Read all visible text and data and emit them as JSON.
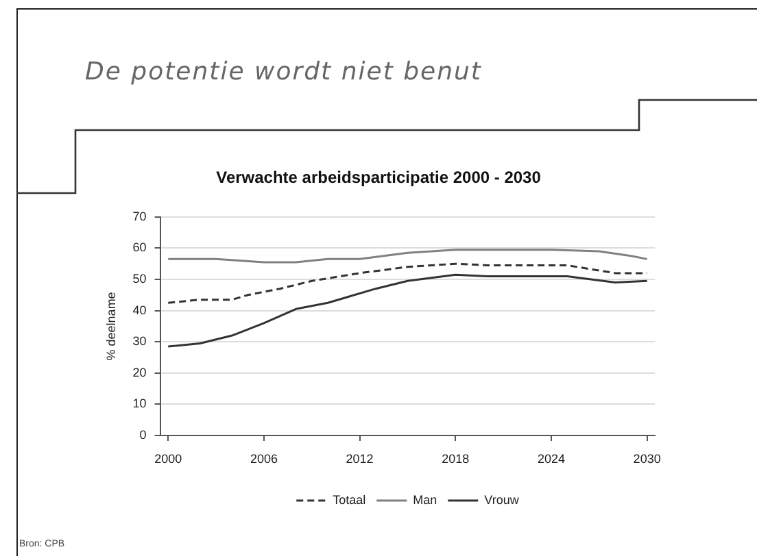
{
  "chart_data": {
    "type": "line",
    "title": "De potentie wordt niet benut",
    "subtitle": "Verwachte arbeidsparticipatie 2000 - 2030",
    "ylabel": "% deelname",
    "annotations": [
      "Bron: CPB"
    ],
    "xlim": [
      1999.5,
      2030.5
    ],
    "xticks": [
      2000,
      2006,
      2012,
      2018,
      2024,
      2030
    ],
    "ylim": [
      0,
      70
    ],
    "yticks": [
      0,
      10,
      20,
      30,
      40,
      50,
      60,
      70
    ],
    "grid": "y",
    "legend": "bottom",
    "series": [
      {
        "name": "Totaal",
        "color": "#333333",
        "line_style": "dashed",
        "x": [
          2000,
          2002,
          2004,
          2005,
          2007,
          2009,
          2012,
          2015,
          2018,
          2020,
          2025,
          2028,
          2030
        ],
        "values": [
          42.5,
          43.5,
          43.5,
          45,
          47,
          49.5,
          52,
          54,
          55,
          54.5,
          54.5,
          52,
          52
        ]
      },
      {
        "name": "Man",
        "color": "#808080",
        "line_style": "solid",
        "x": [
          2000,
          2003,
          2006,
          2008,
          2010,
          2012,
          2015,
          2018,
          2024,
          2027,
          2029,
          2030
        ],
        "values": [
          56.5,
          56.5,
          55.5,
          55.5,
          56.5,
          56.5,
          58.5,
          59.5,
          59.5,
          59,
          57.5,
          56.5
        ]
      },
      {
        "name": "Vrouw",
        "color": "#333333",
        "line_style": "solid",
        "x": [
          2000,
          2002,
          2004,
          2006,
          2008,
          2010,
          2013,
          2015,
          2018,
          2020,
          2025,
          2028,
          2030
        ],
        "values": [
          28.5,
          29.5,
          32,
          36,
          40.5,
          42.5,
          47,
          49.5,
          51.5,
          51,
          51,
          49,
          49.5
        ]
      }
    ]
  }
}
